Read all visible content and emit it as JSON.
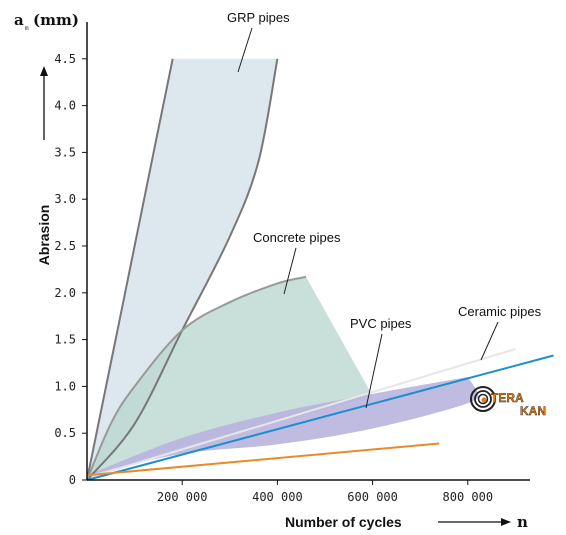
{
  "chart_data": {
    "type": "area",
    "xlabel": "Number of cycles",
    "x_symbol": "n",
    "ylabel": "Abrasion",
    "y_symbol": "a",
    "y_subscript": "m",
    "y_unit": "(mm)",
    "xlim": [
      0,
      1000000
    ],
    "ylim": [
      0,
      4.7
    ],
    "x_ticks": [
      200000,
      400000,
      600000,
      800000
    ],
    "x_tick_labels": [
      "200 000",
      "400 000",
      "600 000",
      "800 000"
    ],
    "y_ticks": [
      0,
      0.5,
      1.0,
      1.5,
      2.0,
      2.5,
      3.0,
      3.5,
      4.0,
      4.5
    ],
    "y_tick_labels": [
      "0",
      "0.5",
      "1.0",
      "1.5",
      "2.0",
      "2.5",
      "3.0",
      "3.5",
      "4.0",
      "4.5"
    ],
    "grid": false,
    "series": [
      {
        "name": "GRP pipes",
        "kind": "band",
        "color": "#dde7ee",
        "edge_color": "#777777",
        "upper": [
          [
            0,
            0
          ],
          [
            20000,
            0.5
          ],
          [
            60000,
            1.5
          ],
          [
            100000,
            2.5
          ],
          [
            140000,
            3.5
          ],
          [
            180000,
            4.5
          ]
        ],
        "lower": [
          [
            0,
            0
          ],
          [
            100000,
            0.6
          ],
          [
            200000,
            1.6
          ],
          [
            300000,
            2.6
          ],
          [
            360000,
            3.4
          ],
          [
            400000,
            4.5
          ]
        ]
      },
      {
        "name": "Concrete pipes",
        "kind": "band",
        "color": "#b9d6cf",
        "edge_color": "#999999",
        "upper": [
          [
            0,
            0
          ],
          [
            50000,
            0.6
          ],
          [
            100000,
            1.0
          ],
          [
            200000,
            1.6
          ],
          [
            300000,
            1.9
          ],
          [
            400000,
            2.1
          ],
          [
            460000,
            2.17
          ]
        ],
        "lower": [
          [
            0,
            0
          ],
          [
            100000,
            0.2
          ],
          [
            300000,
            0.5
          ],
          [
            500000,
            0.75
          ],
          [
            600000,
            0.9
          ]
        ]
      },
      {
        "name": "PVC pipes",
        "kind": "band",
        "color": "#b8b4de",
        "upper": [
          [
            0,
            0.05
          ],
          [
            200000,
            0.45
          ],
          [
            400000,
            0.72
          ],
          [
            600000,
            0.92
          ],
          [
            800000,
            1.1
          ]
        ],
        "lower": [
          [
            0,
            0.05
          ],
          [
            200000,
            0.28
          ],
          [
            400000,
            0.38
          ],
          [
            600000,
            0.55
          ],
          [
            800000,
            0.82
          ],
          [
            820000,
            0.95
          ]
        ]
      },
      {
        "name": "Ceramic pipes",
        "kind": "line",
        "color": "#1c8fce",
        "points": [
          [
            0,
            0
          ],
          [
            980000,
            1.33
          ]
        ]
      },
      {
        "kind": "line",
        "color": "#e98a2a",
        "points": [
          [
            0,
            0.05
          ],
          [
            740000,
            0.39
          ]
        ]
      }
    ],
    "annotations": [
      "GRP pipes",
      "Concrete pipes",
      "PVC pipes",
      "Ceramic pipes"
    ]
  },
  "logo": {
    "line1": "TERA",
    "line2": "KAN",
    "colors": {
      "orange": "#e87a10",
      "dark": "#222222"
    }
  }
}
